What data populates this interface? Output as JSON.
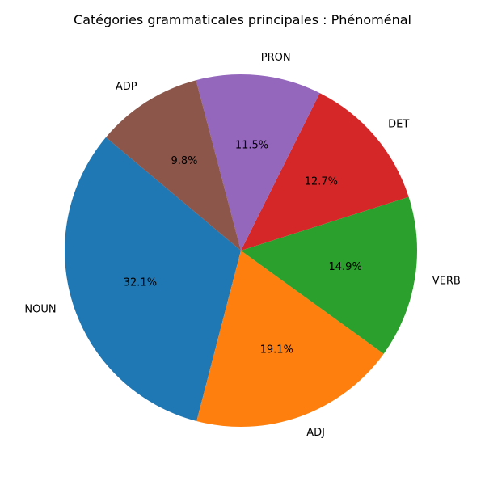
{
  "chart_data": {
    "type": "pie",
    "title": "Catégories grammaticales principales : Phénoménal",
    "start_angle_deg": 140,
    "direction": "counterclockwise",
    "slices": [
      {
        "label": "NOUN",
        "value": 32.1,
        "pct_text": "32.1%",
        "color": "#1f77b4"
      },
      {
        "label": "ADJ",
        "value": 19.1,
        "pct_text": "19.1%",
        "color": "#ff7f0e"
      },
      {
        "label": "VERB",
        "value": 14.9,
        "pct_text": "14.9%",
        "color": "#2ca02c"
      },
      {
        "label": "DET",
        "value": 12.7,
        "pct_text": "12.7%",
        "color": "#d62728"
      },
      {
        "label": "PRON",
        "value": 11.5,
        "pct_text": "11.5%",
        "color": "#9467bd"
      },
      {
        "label": "ADP",
        "value": 9.8,
        "pct_text": "9.8%",
        "color": "#8c564b"
      }
    ]
  }
}
